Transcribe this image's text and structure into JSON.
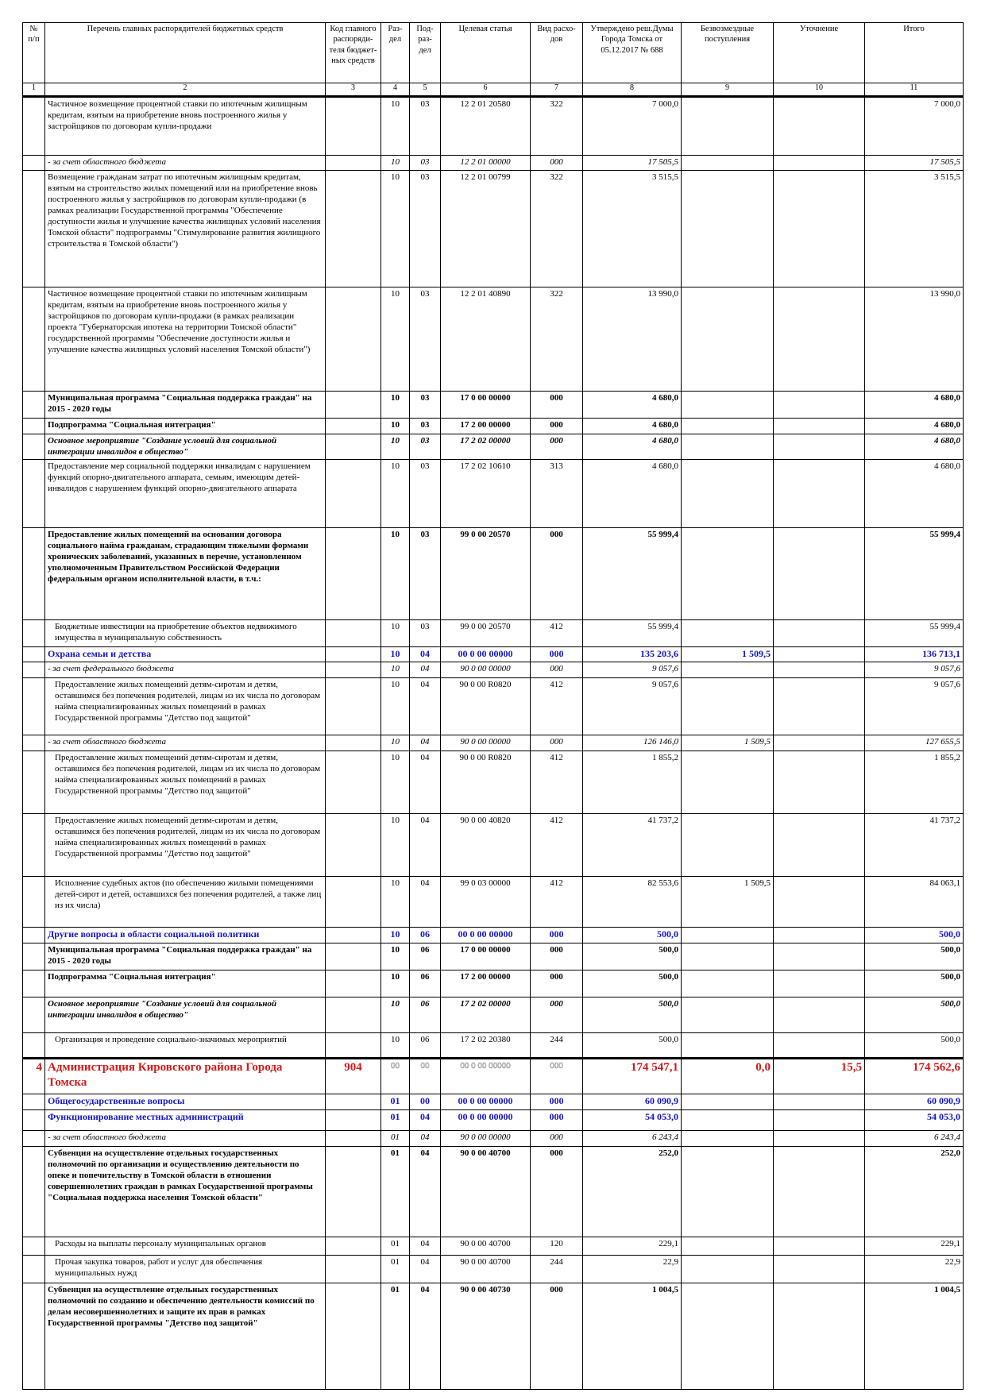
{
  "header": {
    "cells": [
      "№ п/п",
      "Перечень главных распорядителей бюджетных средств",
      "Код главного распоряди-теля бюджет-ных средств",
      "Раз-дел",
      "Под-раз-дел",
      "Целевая статья",
      "Вид расхо-дов",
      "Утверждено реш.Думы Города Томска от 05.12.2017 № 688",
      "Безвозмездные поступления",
      "Уточнение",
      "Итого"
    ],
    "numbers": [
      "1",
      "2",
      "3",
      "4",
      "5",
      "6",
      "7",
      "8",
      "9",
      "10",
      "11"
    ]
  },
  "table": {
    "rows": [
      [
        null,
        "Частичное возмещение процентной ставки по ипотечным жилищным кредитам, взятым на приобретение вновь построенного жилья у застройщиков по договорам купли-продажи",
        null,
        "10",
        "03",
        "12 2 01 20580",
        "322",
        "7 000,0",
        null,
        null,
        "7 000,0"
      ],
      [
        null,
        "- за счет областного бюджета",
        null,
        "10",
        "03",
        "12 2 01 00000",
        "000",
        "17 505,5",
        null,
        null,
        "17 505,5"
      ],
      [
        null,
        "Возмещение гражданам затрат по ипотечным жилищным кредитам, взятым на строительство жилых помещений или на приобретение вновь построенного жилья у застройщиков по договорам купли-продажи (в рамках реализации Государственной программы \"Обеспечение доступности жилья и улучшение качества жилищных условий населения Томской области\" подпрограммы \"Стимулирование развития жилищного строительства в Томской области\")",
        null,
        "10",
        "03",
        "12 2 01 00799",
        "322",
        "3 515,5",
        null,
        null,
        "3 515,5"
      ],
      [
        null,
        "Частичное возмещение процентной ставки по ипотечным жилищным кредитам, взятым на приобретение вновь построенного жилья у застройщиков по договорам купли-продажи (в рамках реализации проекта \"Губернаторская ипотека на территории Томской области\" государственной программы \"Обеспечение доступности жилья и улучшение качества жилищных условий населения Томской области\")",
        null,
        "10",
        "03",
        "12 2 01 40890",
        "322",
        "13 990,0",
        null,
        null,
        "13 990,0"
      ],
      [
        null,
        "Муниципальная программа \"Социальная поддержка граждан\" на 2015 - 2020 годы",
        null,
        "10",
        "03",
        "17 0 00 00000",
        "000",
        "4 680,0",
        null,
        null,
        "4 680,0"
      ],
      [
        null,
        "Подпрограмма \"Социальная интеграция\"",
        null,
        "10",
        "03",
        "17 2 00 00000",
        "000",
        "4 680,0",
        null,
        null,
        "4 680,0"
      ],
      [
        null,
        "Основное мероприятие \"Создание условий для социальной интеграции инвалидов в общество\"",
        null,
        "10",
        "03",
        "17 2 02 00000",
        "000",
        "4 680,0",
        null,
        null,
        "4 680,0"
      ],
      [
        null,
        "Предоставление мер социальной поддержки инвалидам с нарушением функций опорно-двигательного аппарата, семьям, имеющим детей-инвалидов с нарушением функций опорно-двигательного аппарата",
        null,
        "10",
        "03",
        "17 2 02 10610",
        "313",
        "4 680,0",
        null,
        null,
        "4 680,0"
      ],
      [
        null,
        "Предоставление жилых помещений на основании договора социального найма гражданам, страдающим тяжелыми формами хронических заболеваний, указанных в перечне, установленном уполномоченным Правительством Российской Федерации федеральным органом исполнительной власти, в т.ч.:",
        null,
        "10",
        "03",
        "99 0 00 20570",
        "000",
        "55 999,4",
        null,
        null,
        "55 999,4"
      ],
      [
        null,
        "Бюджетные инвестиции на приобретение объектов недвижимого имущества в муниципальную собственность",
        null,
        "10",
        "03",
        "99 0 00 20570",
        "412",
        "55 999,4",
        null,
        null,
        "55 999,4"
      ],
      [
        null,
        "Охрана семьи и детства",
        null,
        "10",
        "04",
        "00 0 00 00000",
        "000",
        "135 203,6",
        "1 509,5",
        null,
        "136 713,1"
      ],
      [
        null,
        "- за счет федерального бюджета",
        null,
        "10",
        "04",
        "90 0 00 00000",
        "000",
        "9 057,6",
        null,
        null,
        "9 057,6"
      ],
      [
        null,
        "Предоставление жилых помещений детям-сиротам и детям, оставшимся без попечения родителей, лицам из их числа по договорам найма специализированных жилых помещений в рамках Государственной программы \"Детство под защитой\"",
        null,
        "10",
        "04",
        "90 0 00 R0820",
        "412",
        "9 057,6",
        null,
        null,
        "9 057,6"
      ],
      [
        null,
        "- за счет областного бюджета",
        null,
        "10",
        "04",
        "90 0 00 00000",
        "000",
        "126 146,0",
        "1 509,5",
        null,
        "127 655,5"
      ],
      [
        null,
        "Предоставление жилых помещений детям-сиротам и детям, оставшимся без попечения родителей, лицам из их числа по договорам найма специализированных жилых помещений в рамках Государственной программы \"Детство под защитой\"",
        null,
        "10",
        "04",
        "90 0 00 R0820",
        "412",
        "1 855,2",
        null,
        null,
        "1 855,2"
      ],
      [
        null,
        "Предоставление жилых помещений детям-сиротам и детям, оставшимся без попечения родителей, лицам из их числа по договорам найма специализированных жилых помещений в рамках Государственной программы \"Детство под защитой\"",
        null,
        "10",
        "04",
        "90 0 00 40820",
        "412",
        "41 737,2",
        null,
        null,
        "41 737,2"
      ],
      [
        null,
        "Исполнение судебных актов (по обеспечению жилыми помещениями детей-сирот и детей, оставшихся без попечения родителей, а также лиц из их числа)",
        null,
        "10",
        "04",
        "99 0 03 00000",
        "412",
        "82 553,6",
        "1 509,5",
        null,
        "84 063,1"
      ],
      [
        null,
        "Другие вопросы в области социальной политики",
        null,
        "10",
        "06",
        "00 0 00 00000",
        "000",
        "500,0",
        null,
        null,
        "500,0"
      ],
      [
        null,
        "Муниципальная программа \"Социальная поддержка граждан\" на 2015 - 2020 годы",
        null,
        "10",
        "06",
        "17 0 00 00000",
        "000",
        "500,0",
        null,
        null,
        "500,0"
      ],
      [
        null,
        "Подпрограмма \"Социальная интеграция\"",
        null,
        "10",
        "06",
        "17 2 00 00000",
        "000",
        "500,0",
        null,
        null,
        "500,0"
      ],
      [
        null,
        "Основное мероприятие \"Создание условий для социальной интеграции инвалидов в общество\"",
        null,
        "10",
        "06",
        "17 2 02 00000",
        "000",
        "500,0",
        null,
        null,
        "500,0"
      ],
      [
        null,
        "Организация и проведение социально-значимых мероприятий",
        null,
        "10",
        "06",
        "17 2 02 20380",
        "244",
        "500,0",
        null,
        null,
        "500,0"
      ],
      [
        "4",
        "Администрация Кировского района Города Томска",
        "904",
        "00",
        "00",
        "00 0 00 00000",
        "000",
        "174 547,1",
        "0,0",
        "15,5",
        "174 562,6"
      ],
      [
        null,
        "Общегосударственные вопросы",
        null,
        "01",
        "00",
        "00 0 00 00000",
        "000",
        "60 090,9",
        null,
        null,
        "60 090,9"
      ],
      [
        null,
        "Функционирование  местных администраций",
        null,
        "01",
        "04",
        "00 0 00 00000",
        "000",
        "54 053,0",
        null,
        null,
        "54 053,0"
      ],
      [
        null,
        "- за счет областного бюджета",
        null,
        "01",
        "04",
        "90 0 00 00000",
        "000",
        "6 243,4",
        null,
        null,
        "6 243,4"
      ],
      [
        null,
        "Субвенция на осуществление отдельных государственных полномочий по организации и осуществлению деятельности по опеке и попечительству в Томской области в отношении совершеннолетних граждан в рамках Государственной программы \"Социальная поддержка населения Томской области\"",
        null,
        "01",
        "04",
        "90 0 00 40700",
        "000",
        "252,0",
        null,
        null,
        "252,0"
      ],
      [
        null,
        "Расходы на выплаты персоналу муниципальных органов",
        null,
        "01",
        "04",
        "90 0 00 40700",
        "120",
        "229,1",
        null,
        null,
        "229,1"
      ],
      [
        null,
        "Прочая закупка товаров, работ и услуг для обеспечения муниципальных нужд",
        null,
        "01",
        "04",
        "90 0 00 40700",
        "244",
        "22,9",
        null,
        null,
        "22,9"
      ],
      [
        null,
        "Субвенция на осуществление отдельных государственных полномочий по созданию и обеспечению деятельности комиссий по делам несовершеннолетних и защите их прав в рамках Государственной программы \"Детство под защитой\"",
        null,
        "01",
        "04",
        "90 0 00 40730",
        "000",
        "1 004,5",
        null,
        null,
        "1 004,5"
      ]
    ]
  }
}
